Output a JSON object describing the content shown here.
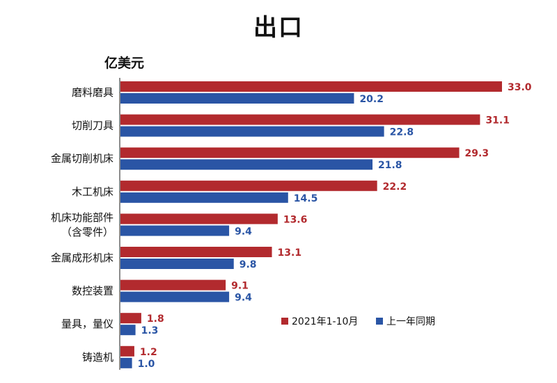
{
  "title": "出口",
  "unit": "亿美元",
  "colors": {
    "series1": "#b22a2e",
    "series2": "#2a55a5",
    "axis": "#666666"
  },
  "chart_data": {
    "type": "bar",
    "orientation": "horizontal",
    "title": "出口",
    "ylabel": "亿美元",
    "categories": [
      [
        "磨料磨具"
      ],
      [
        "切削刀具"
      ],
      [
        "金属切削机床"
      ],
      [
        "木工机床"
      ],
      [
        "机床功能部件",
        "（含零件）"
      ],
      [
        "金属成形机床"
      ],
      [
        "数控装置"
      ],
      [
        "量具，量仪"
      ],
      [
        "铸造机"
      ]
    ],
    "series": [
      {
        "name": "2021年1-10月",
        "values": [
          33.0,
          31.1,
          29.3,
          22.2,
          13.6,
          13.1,
          9.1,
          1.8,
          1.2
        ],
        "labels": [
          "33.0",
          "31.1",
          "29.3",
          "22.2",
          "13.6",
          "13.1",
          "9.1",
          "1.8",
          "1.2"
        ]
      },
      {
        "name": "上一年同期",
        "values": [
          20.2,
          22.8,
          21.8,
          14.5,
          9.4,
          9.8,
          9.4,
          1.3,
          1.0
        ],
        "labels": [
          "20.2",
          "22.8",
          "21.8",
          "14.5",
          "9.4",
          "9.8",
          "9.4",
          "1.3",
          "1.0"
        ]
      }
    ],
    "xlim": [
      0,
      33.0
    ],
    "grid": false,
    "legend_position": "bottom-right"
  }
}
